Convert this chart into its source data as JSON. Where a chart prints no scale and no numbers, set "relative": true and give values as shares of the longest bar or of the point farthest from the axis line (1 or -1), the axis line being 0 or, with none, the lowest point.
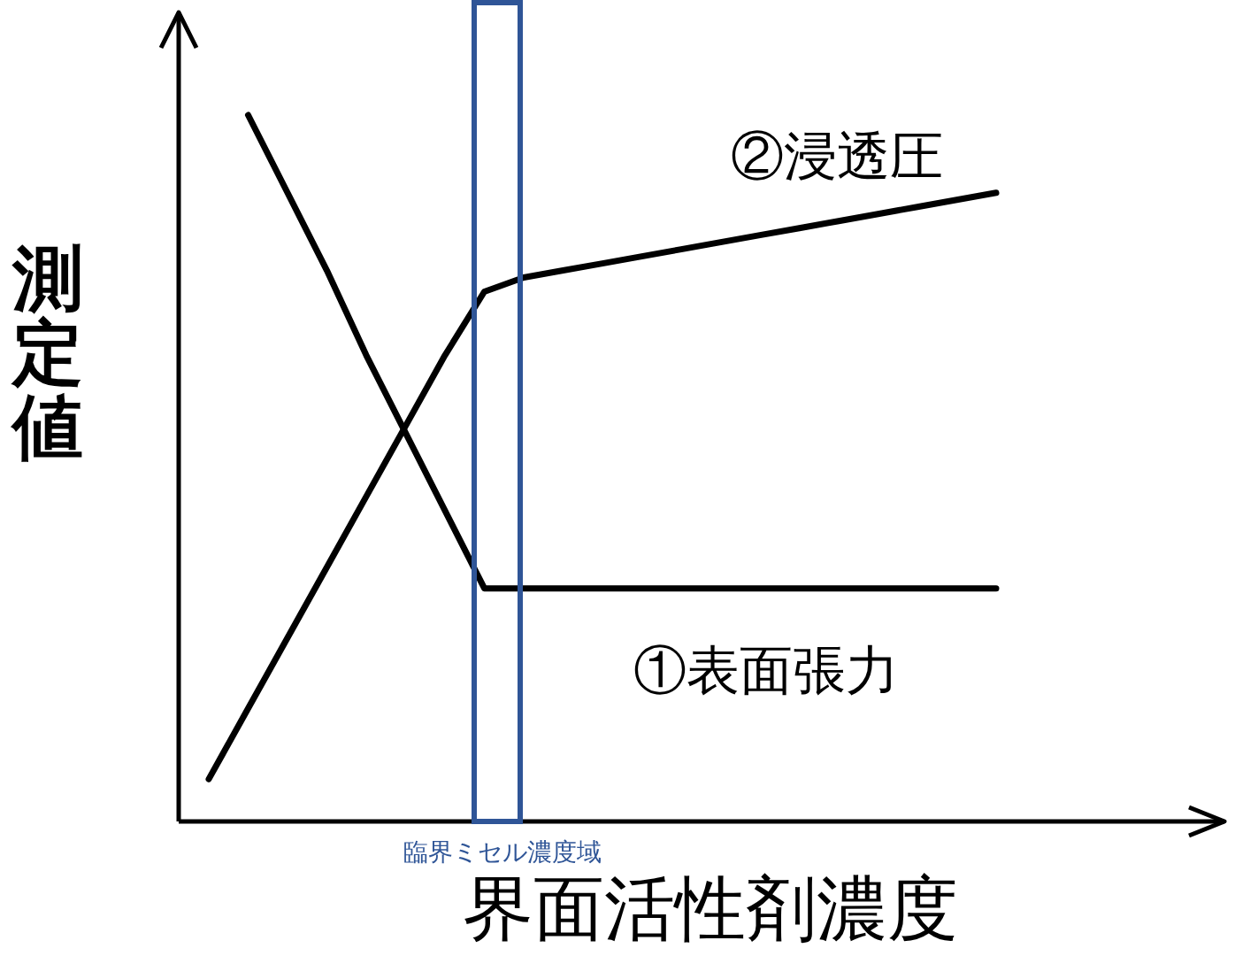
{
  "chart_data": {
    "type": "line",
    "relative": true,
    "xlabel": "界面活性剤濃度",
    "ylabel": "測定値",
    "categories": [
      null,
      null,
      null,
      null,
      null,
      null,
      null,
      null,
      null,
      null,
      null,
      null,
      null,
      null,
      null,
      null,
      null,
      null,
      null,
      null,
      null
    ],
    "series": [
      {
        "name": "①表面張力",
        "color": "#000000",
        "values": [
          null,
          1,
          0.89,
          0.78,
          0.66,
          0.55,
          0.44,
          0.33,
          0.33,
          0.33,
          0.33,
          0.33,
          0.33,
          0.33,
          0.33,
          0.33,
          0.33,
          0.33,
          0.33,
          0.33,
          0.33
        ]
      },
      {
        "name": "②浸透圧",
        "color": "#000000",
        "values": [
          0.06,
          0.16,
          0.26,
          0.36,
          0.46,
          0.56,
          0.66,
          0.75,
          0.77,
          0.78,
          0.79,
          0.8,
          0.81,
          0.82,
          0.83,
          0.84,
          0.85,
          0.86,
          0.87,
          0.88,
          0.89
        ]
      }
    ],
    "annotations": [
      "臨界ミセル濃度域"
    ]
  }
}
